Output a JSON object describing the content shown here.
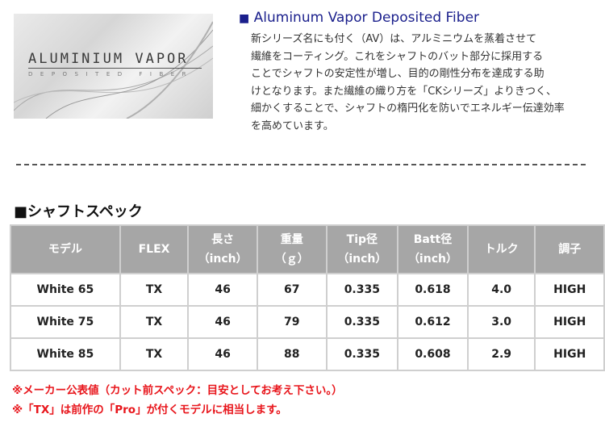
{
  "banner": {
    "title": "ALUMINIUM VAPOR",
    "subtitle": "DEPOSITED FIBER"
  },
  "heading": {
    "marker": "■",
    "text": "Aluminum Vapor Deposited Fiber",
    "color": "#1a1f8c"
  },
  "description": [
    "新シリーズ名にも付く（AV）は、アルミニウムを蒸着させて",
    "繊維をコーティング。これをシャフトのバット部分に採用する",
    "ことでシャフトの安定性が増し、目的の剛性分布を達成する助",
    "けとなります。また繊維の織り方を「CKシリーズ」よりきつく、",
    "細かくすることで、シャフトの楕円化を防いでエネルギー伝達効率",
    "を高めています。"
  ],
  "spec_title": "■シャフトスペック",
  "table": {
    "headers": [
      [
        "モデル",
        ""
      ],
      [
        "FLEX",
        ""
      ],
      [
        "長さ",
        "（inch）"
      ],
      [
        "重量",
        "（ｇ）"
      ],
      [
        "Tip径",
        "（inch）"
      ],
      [
        "Batt径",
        "（inch）"
      ],
      [
        "トルク",
        ""
      ],
      [
        "調子",
        ""
      ]
    ],
    "rows": [
      [
        "White 65",
        "TX",
        "46",
        "67",
        "0.335",
        "0.618",
        "4.0",
        "HIGH"
      ],
      [
        "White 75",
        "TX",
        "46",
        "79",
        "0.335",
        "0.612",
        "3.0",
        "HIGH"
      ],
      [
        "White 85",
        "TX",
        "46",
        "88",
        "0.335",
        "0.608",
        "2.9",
        "HIGH"
      ]
    ]
  },
  "notes": [
    "※メーカー公表値（カット前スペック：目安としてお考え下さい。）",
    "※「TX」は前作の「Pro」が付くモデルに相当します。"
  ],
  "colors": {
    "note": "#e8151b",
    "table_header": "#a6a6a6"
  }
}
